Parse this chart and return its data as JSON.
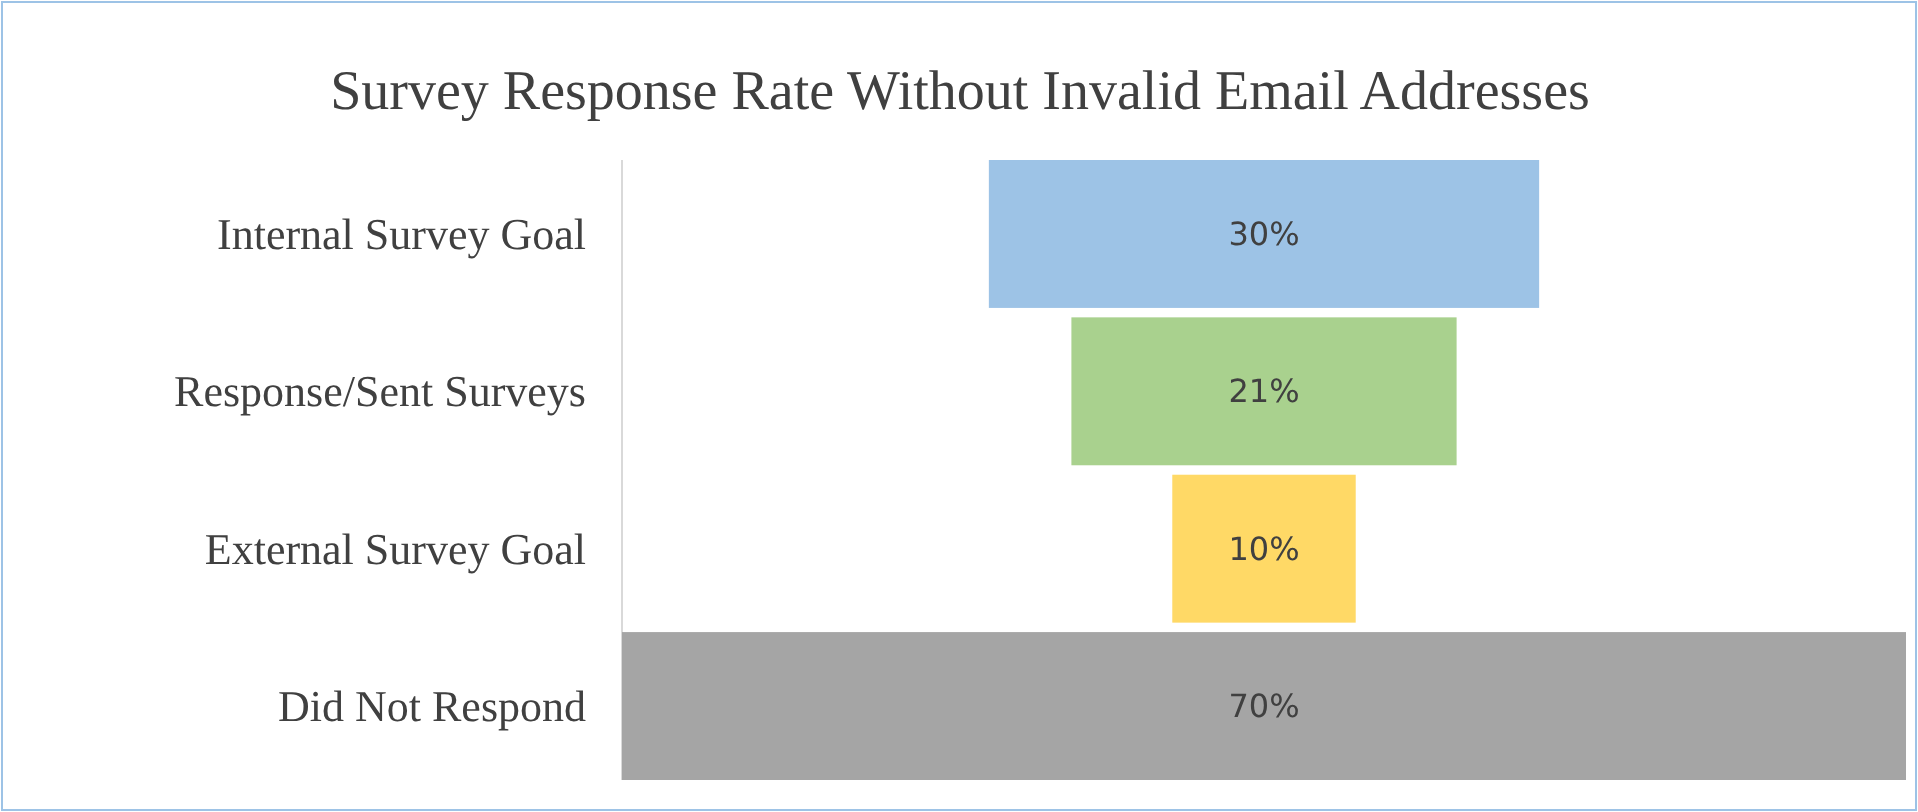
{
  "chart_data": {
    "type": "other",
    "title": "Survey Response Rate Without Invalid Email Addresses",
    "categories": [
      "Internal Survey Goal",
      "Response/Sent Surveys",
      "External Survey Goal",
      "Did Not Respond"
    ],
    "values": [
      30,
      21,
      10,
      70
    ],
    "value_labels": [
      "30%",
      "21%",
      "10%",
      "70%"
    ],
    "colors": [
      "#9dc3e6",
      "#a9d18e",
      "#ffd966",
      "#a5a5a5"
    ]
  }
}
